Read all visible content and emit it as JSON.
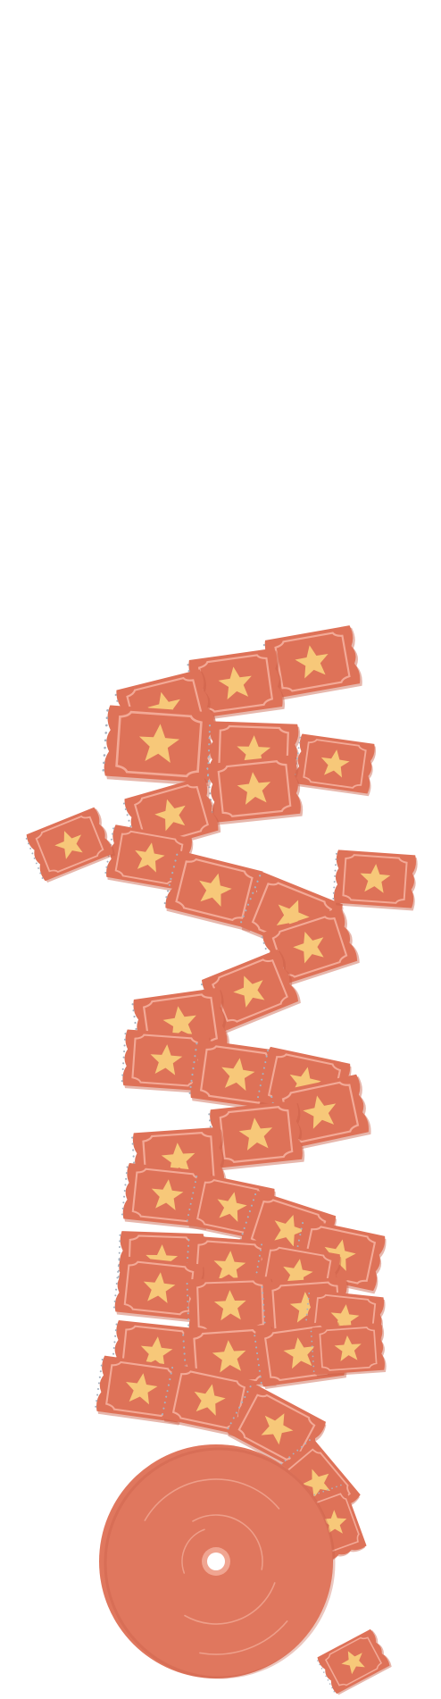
{
  "illustration": {
    "subject": "ticket-roll-icon",
    "colors": {
      "background": "#ffffff",
      "ticket": "#de7258",
      "ticket_border": "#f3a996",
      "ticket_shadow": "#c95f47",
      "star": "#f7c879",
      "perforation": "#a7b2bf",
      "roll": "#e0775e",
      "roll_groove": "#f0a591",
      "hole": "#ffffff"
    }
  }
}
